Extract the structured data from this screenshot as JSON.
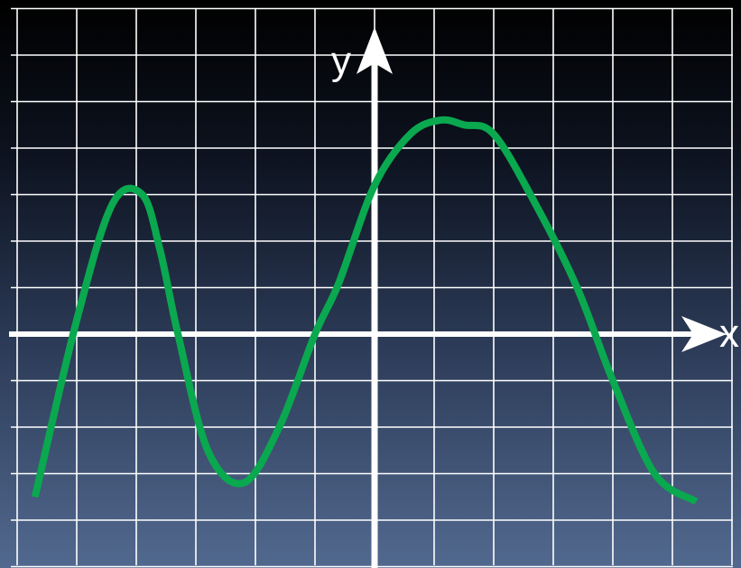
{
  "chart_data": {
    "type": "line",
    "title": "",
    "xlabel": "x",
    "ylabel": "y",
    "grid": true,
    "xlim": [
      -6,
      6
    ],
    "ylim": [
      -5,
      7
    ],
    "x_gridlines": [
      -6,
      -5,
      -4,
      -3,
      -2,
      -1,
      0,
      1,
      2,
      3,
      4,
      5,
      6
    ],
    "y_gridlines": [
      -5,
      -4,
      -3,
      -2,
      -1,
      0,
      1,
      2,
      3,
      4,
      5,
      6,
      7
    ],
    "series": [
      {
        "color": "#0aa84f",
        "x": [
          -5.7,
          -5.0,
          -4.4,
          -3.9,
          -3.6,
          -3.3,
          -2.8,
          -2.2,
          -1.6,
          -1.0,
          -0.6,
          0.0,
          0.6,
          1.1,
          1.5,
          2.0,
          2.7,
          3.4,
          4.0,
          4.7,
          5.4
        ],
        "y": [
          -3.5,
          0.3,
          2.8,
          3.0,
          1.8,
          0.0,
          -2.5,
          -3.2,
          -2.0,
          0.0,
          1.1,
          3.2,
          4.3,
          4.6,
          4.5,
          4.3,
          2.8,
          1.0,
          -1.0,
          -3.0,
          -3.6
        ]
      }
    ]
  }
}
